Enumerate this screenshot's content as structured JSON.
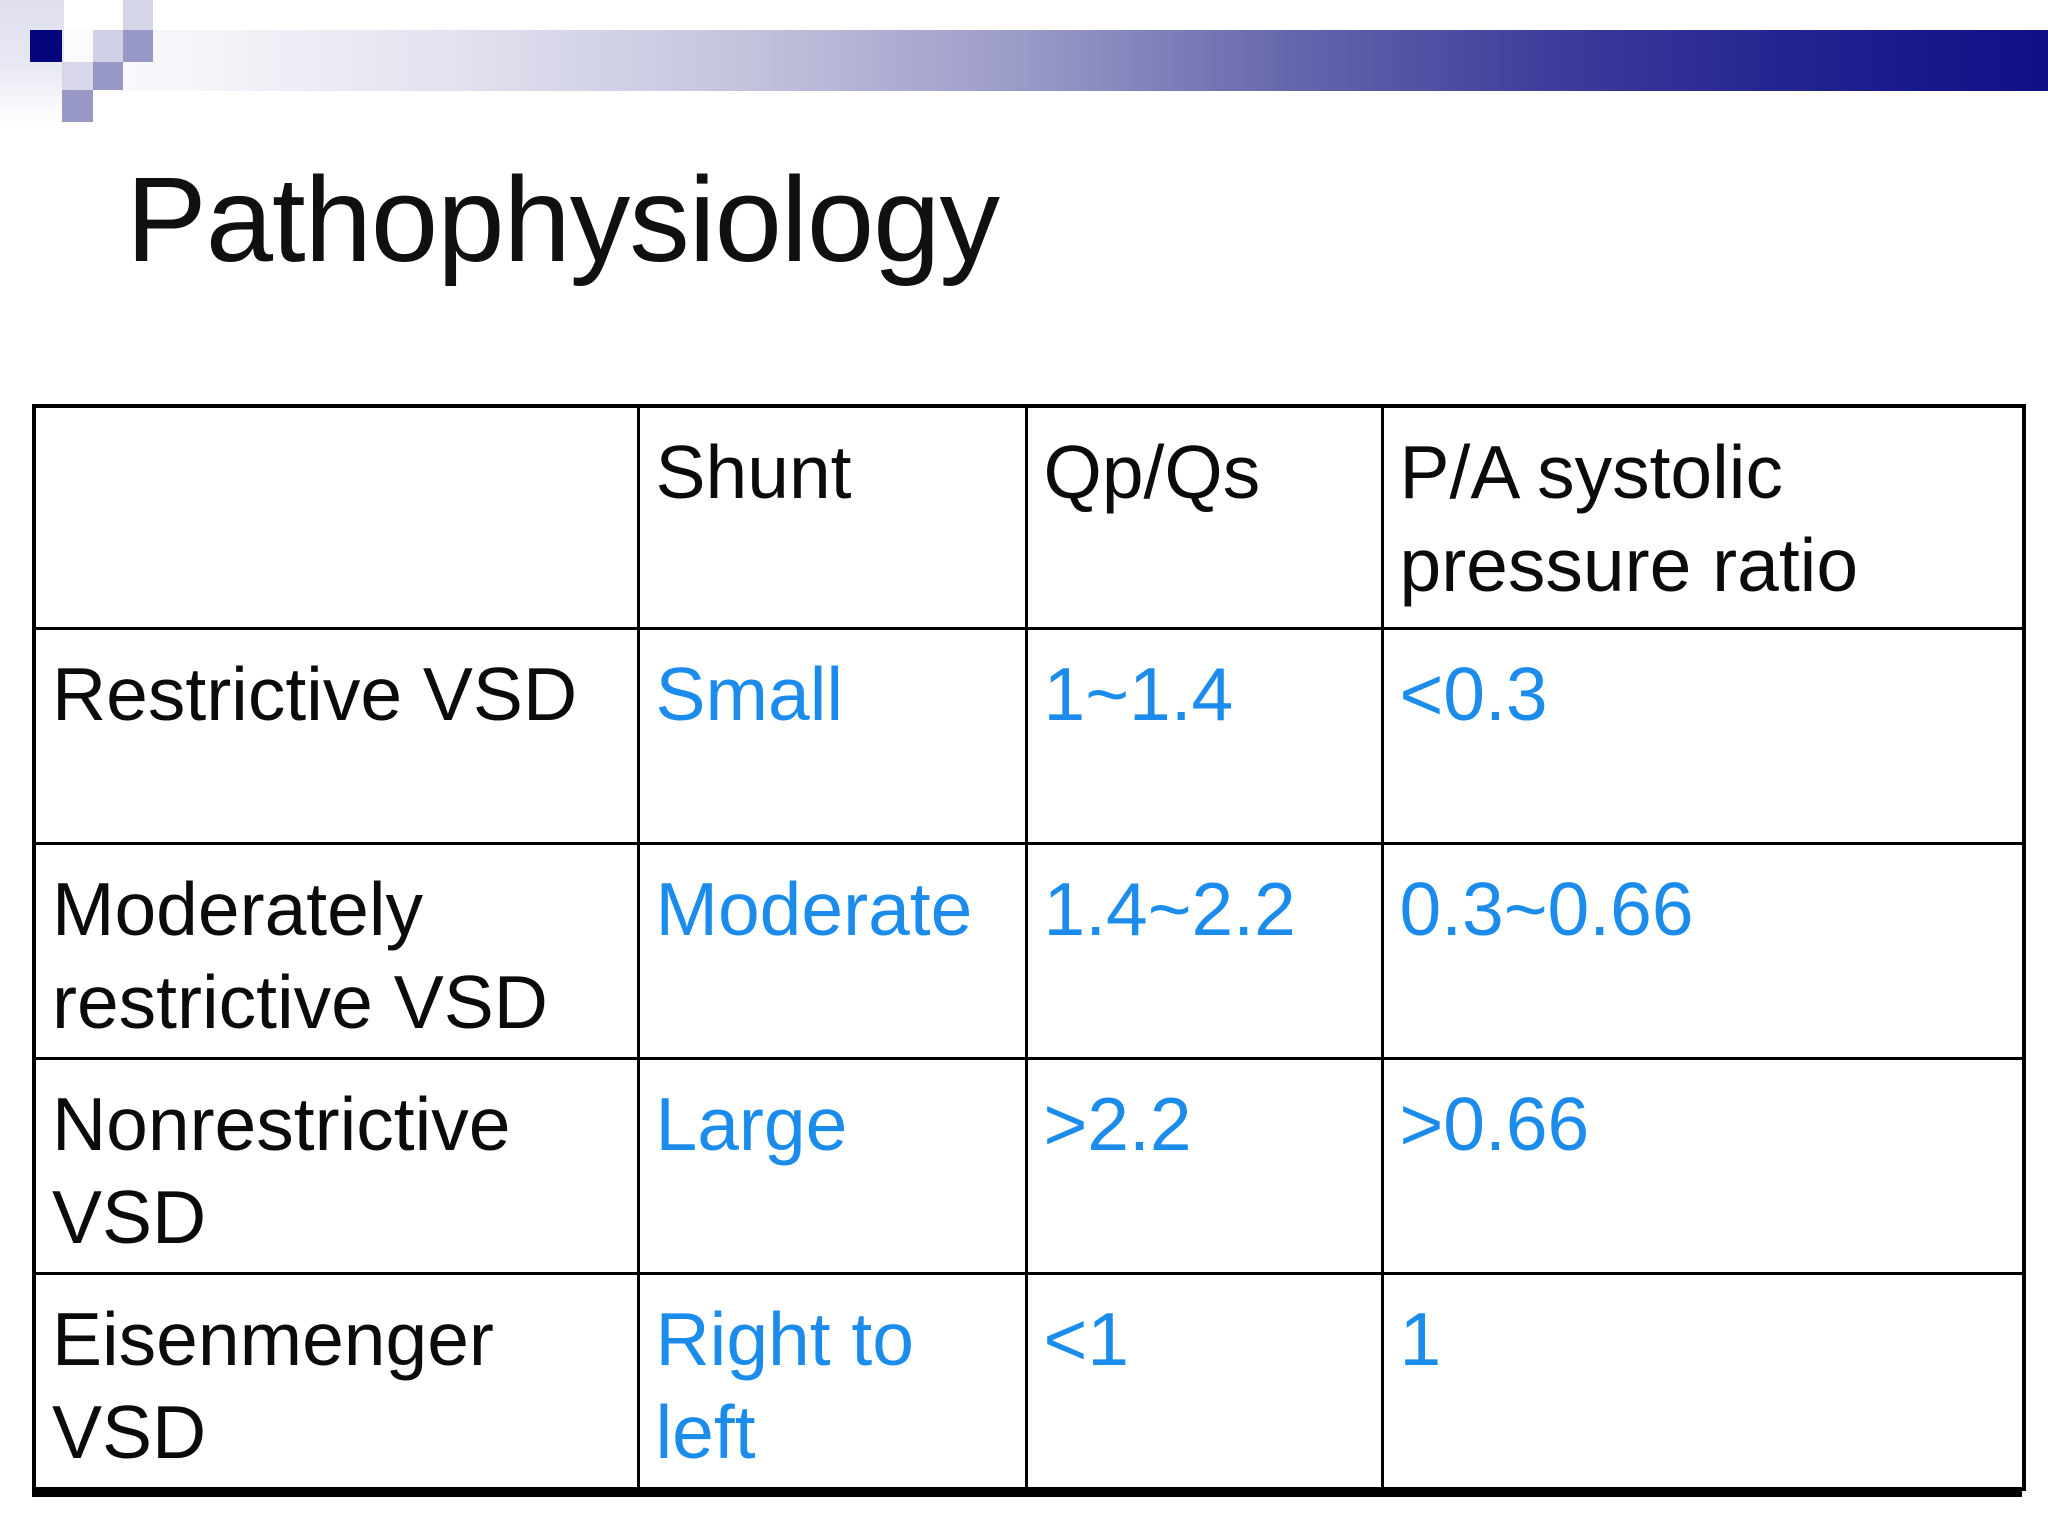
{
  "slide": {
    "title": "Pathophysiology"
  },
  "table": {
    "headers": [
      "",
      "Shunt",
      "Qp/Qs",
      "P/A systolic pressure ratio"
    ],
    "rows": [
      [
        "Restrictive VSD",
        "Small",
        "1~1.4",
        "<0.3"
      ],
      [
        "Moderately restrictive VSD",
        "Moderate",
        "1.4~2.2",
        "0.3~0.66"
      ],
      [
        "Nonrestrictive VSD",
        "Large",
        ">2.2",
        ">0.66"
      ],
      [
        "Eisenmenger VSD",
        "Right to left",
        "<1",
        "1"
      ]
    ]
  },
  "colors": {
    "accent_text": "#1b8ceb",
    "bar_dark": "#0f0f88",
    "mosaic_navy": "#04047c",
    "mosaic_medium": "#9898c6",
    "mosaic_light": "#cfcfe5",
    "table_border": "#000000",
    "title_text": "#101010"
  }
}
